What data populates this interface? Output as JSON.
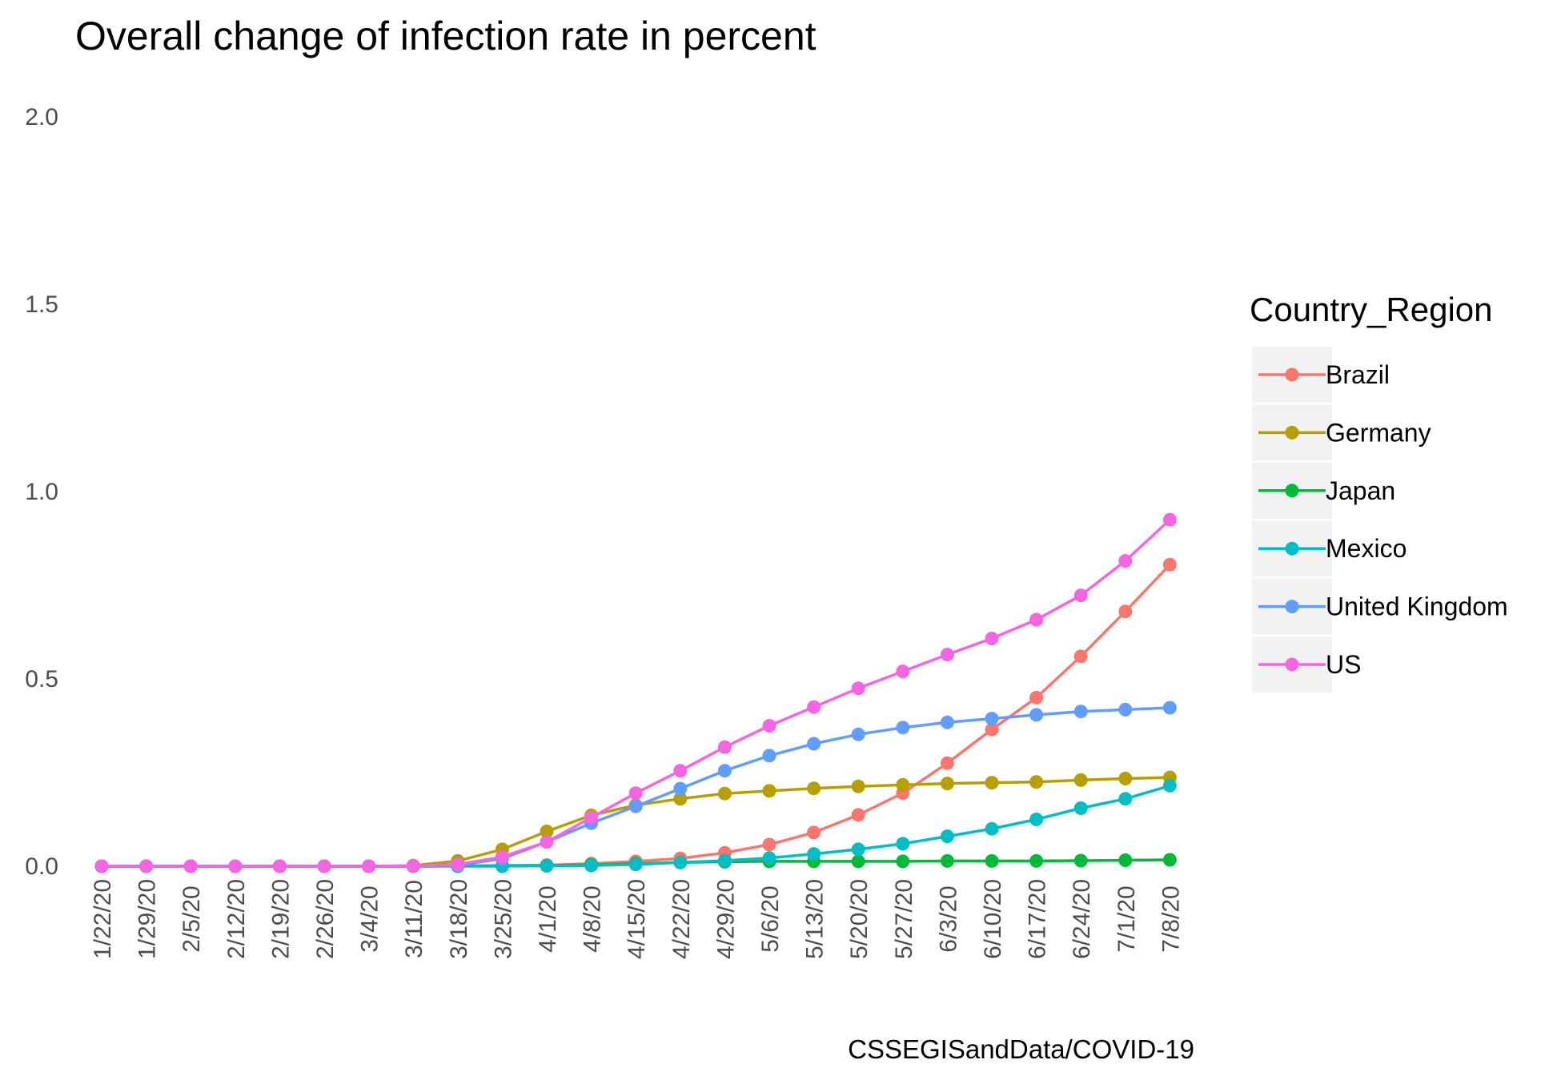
{
  "chart_data": {
    "type": "line",
    "title": "Overall change of infection rate in percent",
    "caption": "CSSEGISandData/COVID-19",
    "xlabel": "",
    "ylabel": "",
    "ylim": [
      0,
      2
    ],
    "yticks": [
      "0.0",
      "0.5",
      "1.0",
      "1.5",
      "2.0"
    ],
    "grid": false,
    "legend_title": "Country_Region",
    "legend_position": "right",
    "categories": [
      "1/22/20",
      "1/29/20",
      "2/5/20",
      "2/12/20",
      "2/19/20",
      "2/26/20",
      "3/4/20",
      "3/11/20",
      "3/18/20",
      "3/25/20",
      "4/1/20",
      "4/8/20",
      "4/15/20",
      "4/22/20",
      "4/29/20",
      "5/6/20",
      "5/13/20",
      "5/20/20",
      "5/27/20",
      "6/3/20",
      "6/10/20",
      "6/17/20",
      "6/24/20",
      "7/1/20",
      "7/8/20"
    ],
    "series": [
      {
        "name": "Brazil",
        "color": "#F8766D",
        "values": [
          0,
          0,
          0,
          0,
          0,
          0,
          0,
          0,
          0.001,
          0.002,
          0.003,
          0.007,
          0.013,
          0.021,
          0.036,
          0.058,
          0.09,
          0.137,
          0.195,
          0.275,
          0.365,
          0.45,
          0.56,
          0.68,
          0.805
        ]
      },
      {
        "name": "Germany",
        "color": "#B79F00",
        "values": [
          0,
          0,
          0,
          0,
          0,
          0,
          0,
          0.002,
          0.014,
          0.045,
          0.093,
          0.136,
          0.163,
          0.18,
          0.194,
          0.201,
          0.208,
          0.213,
          0.217,
          0.221,
          0.223,
          0.225,
          0.23,
          0.234,
          0.237
        ]
      },
      {
        "name": "Japan",
        "color": "#00BA38",
        "values": [
          0,
          0,
          0,
          0,
          0,
          0,
          0,
          0,
          0.001,
          0.001,
          0.002,
          0.004,
          0.007,
          0.01,
          0.012,
          0.013,
          0.013,
          0.013,
          0.013,
          0.014,
          0.014,
          0.014,
          0.015,
          0.016,
          0.017
        ]
      },
      {
        "name": "Mexico",
        "color": "#00BFC4",
        "values": [
          0,
          0,
          0,
          0,
          0,
          0,
          0,
          0,
          0,
          0,
          0.001,
          0.002,
          0.005,
          0.01,
          0.015,
          0.022,
          0.033,
          0.045,
          0.06,
          0.08,
          0.1,
          0.125,
          0.155,
          0.18,
          0.215
        ]
      },
      {
        "name": "United Kingdom",
        "color": "#619CFF",
        "values": [
          0,
          0,
          0,
          0,
          0,
          0,
          0,
          0,
          0.003,
          0.02,
          0.065,
          0.115,
          0.16,
          0.207,
          0.255,
          0.295,
          0.327,
          0.352,
          0.37,
          0.384,
          0.394,
          0.404,
          0.413,
          0.418,
          0.423
        ]
      },
      {
        "name": "US",
        "color": "#F564E3",
        "values": [
          0,
          0,
          0,
          0,
          0,
          0,
          0,
          0.001,
          0.005,
          0.025,
          0.065,
          0.13,
          0.195,
          0.255,
          0.318,
          0.375,
          0.425,
          0.475,
          0.52,
          0.565,
          0.608,
          0.658,
          0.723,
          0.815,
          0.925
        ]
      }
    ]
  }
}
